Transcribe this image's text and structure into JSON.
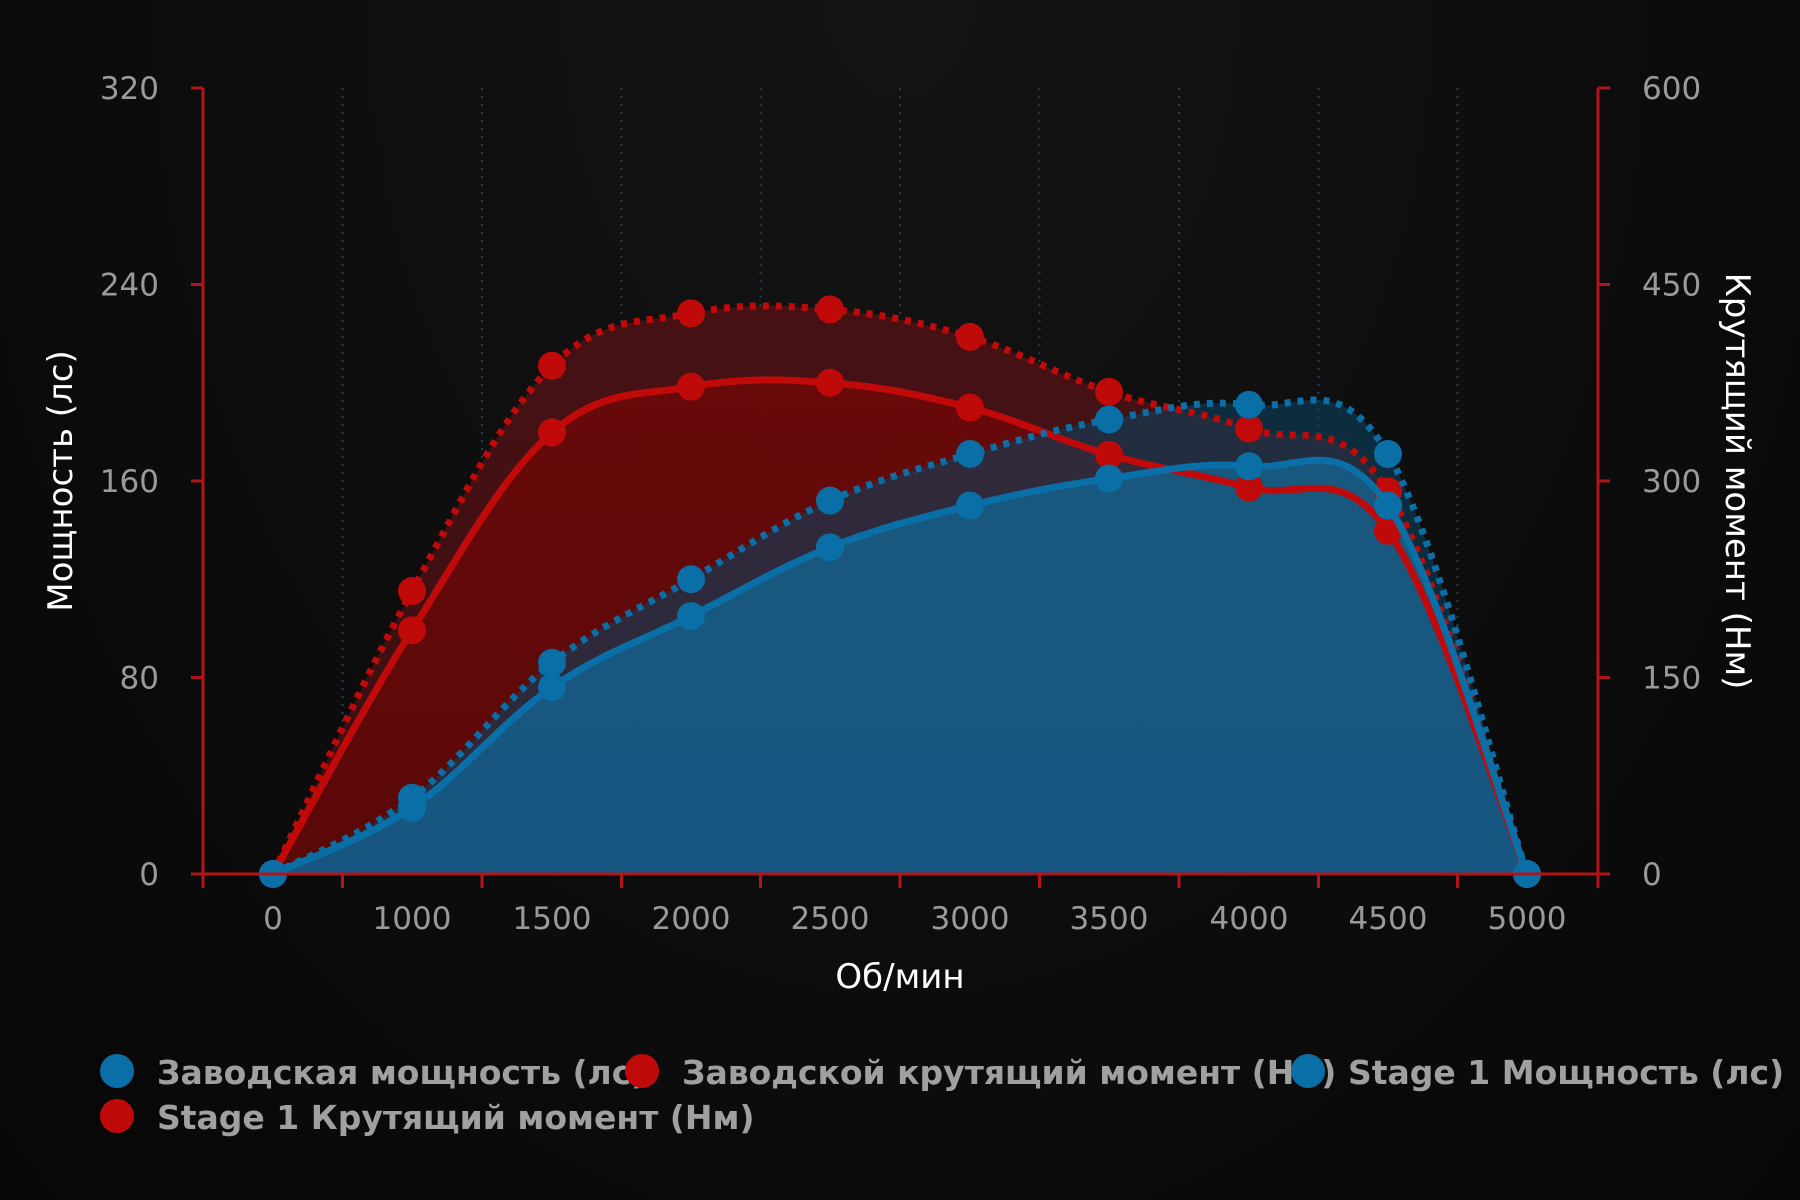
{
  "chart_data": {
    "type": "line",
    "x": [
      0,
      1000,
      1500,
      2000,
      2500,
      3000,
      3500,
      4000,
      4500,
      5000
    ],
    "x_tick_labels": [
      "0",
      "1000",
      "1500",
      "2000",
      "2500",
      "3000",
      "3500",
      "4000",
      "4500",
      "5000"
    ],
    "xlabel": "Об/мин",
    "ylabel_left": "Мощность (лс)",
    "ylabel_right": "Крутящий момент (Нм)",
    "y_left_lim": [
      0,
      320
    ],
    "y_left_ticks": [
      "0",
      "80",
      "160",
      "240",
      "320"
    ],
    "y_right_lim": [
      0,
      600
    ],
    "y_right_ticks": [
      "0",
      "150",
      "300",
      "450",
      "600"
    ],
    "grid": "vertical dotted",
    "legend_placement": "bottom",
    "series": [
      {
        "name": "Заводская мощность (лс)",
        "axis": "left",
        "style": "solid",
        "color": "#0a6fa6",
        "values": [
          0,
          27,
          76,
          105,
          133,
          150,
          161,
          166,
          150,
          0
        ]
      },
      {
        "name": "Заводской крутящий момент (Нм)",
        "axis": "right",
        "style": "solid",
        "color": "#c00a0a",
        "values": [
          0,
          186,
          337,
          372,
          375,
          356,
          320,
          295,
          262,
          0
        ]
      },
      {
        "name": "Stage 1 Мощность (лс)",
        "axis": "left",
        "style": "dotted",
        "color": "#0a6fa6",
        "values": [
          0,
          31,
          86,
          120,
          152,
          171,
          185,
          191,
          171,
          0
        ]
      },
      {
        "name": "Stage 1 Крутящий момент (Нм)",
        "axis": "right",
        "style": "dotted",
        "color": "#c00a0a",
        "values": [
          0,
          216,
          388,
          428,
          431,
          410,
          368,
          340,
          292,
          0
        ]
      }
    ]
  }
}
